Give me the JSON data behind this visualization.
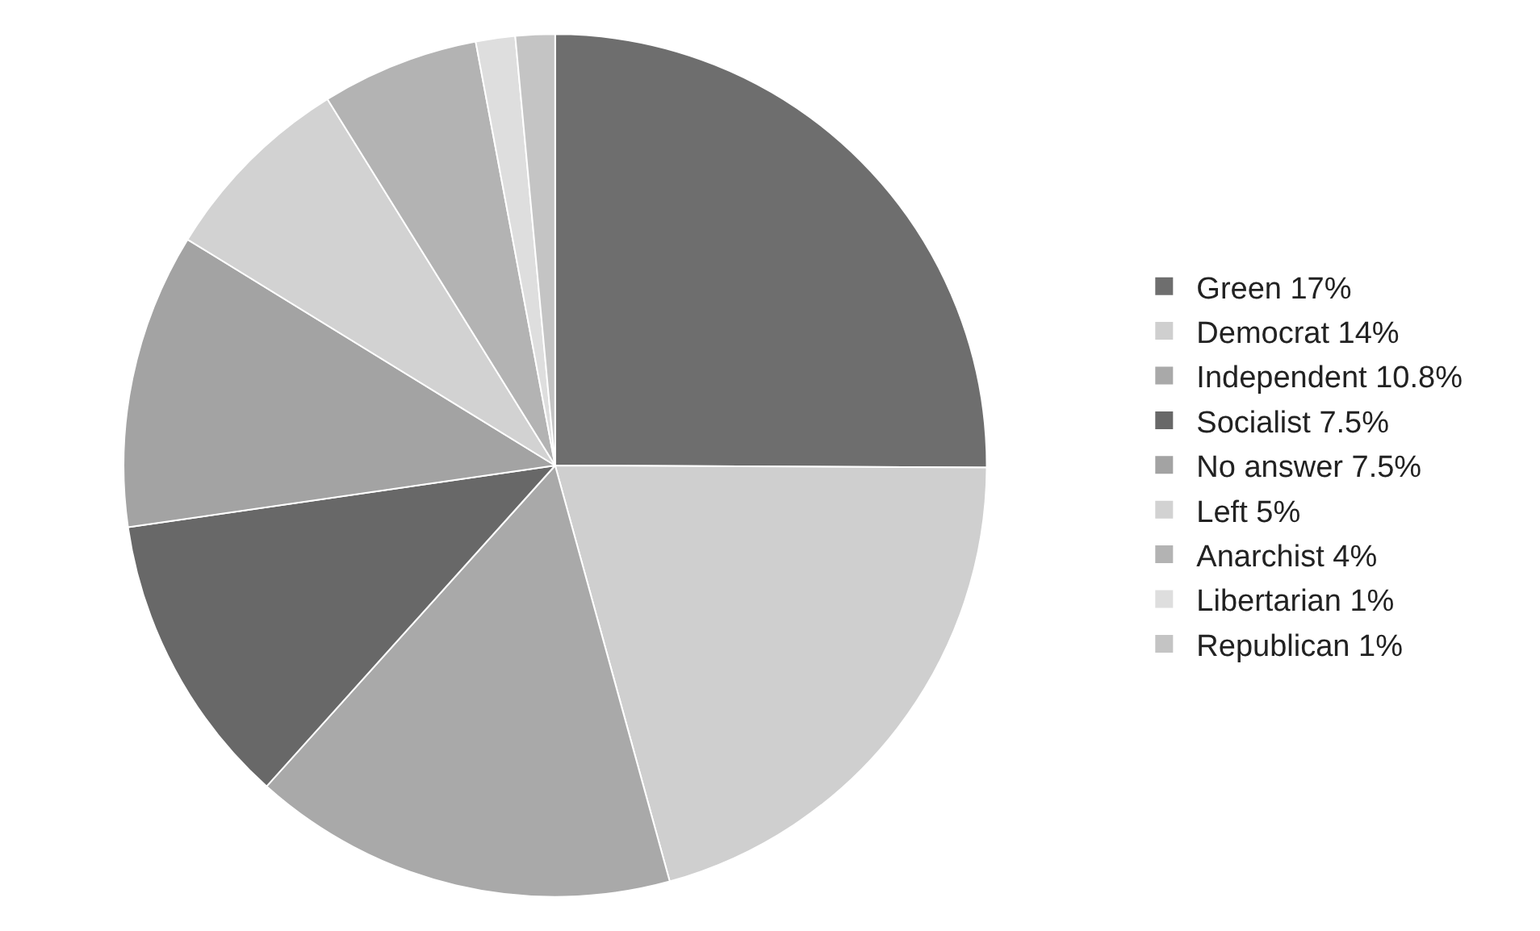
{
  "chart_data": {
    "type": "pie",
    "categories": [
      "Green 17%",
      "Democrat 14%",
      "Independent 10.8%",
      "Socialist 7.5%",
      "No answer 7.5%",
      "Left 5%",
      "Anarchist 4%",
      "Libertarian 1%",
      "Republican 1%"
    ],
    "values": [
      17,
      14,
      10.8,
      7.5,
      7.5,
      5,
      4,
      1,
      1
    ],
    "colors": [
      "#6e6e6e",
      "#cfcfcf",
      "#a9a9a9",
      "#686868",
      "#a3a3a3",
      "#d2d2d2",
      "#b3b3b3",
      "#dedede",
      "#c4c4c4"
    ],
    "legend": "right"
  }
}
